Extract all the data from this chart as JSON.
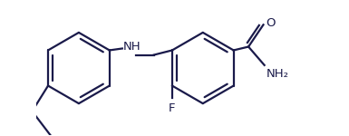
{
  "bg_color": "#ffffff",
  "line_color": "#1a1a4a",
  "line_width": 1.6,
  "font_size": 9.5,
  "figsize": [
    3.85,
    1.5
  ],
  "dpi": 100,
  "xlim": [
    0.0,
    7.8
  ],
  "ylim": [
    -1.6,
    2.2
  ]
}
